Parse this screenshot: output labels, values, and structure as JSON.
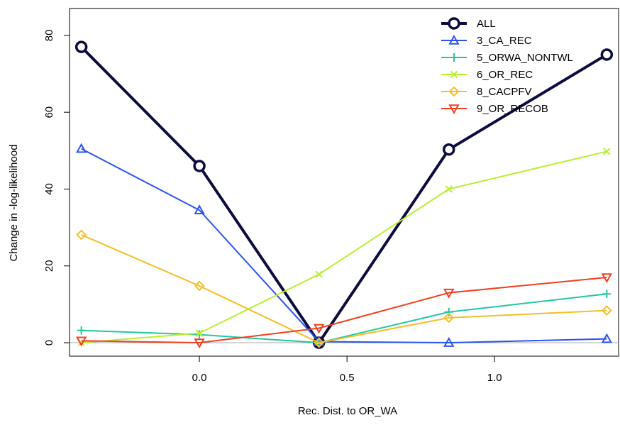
{
  "chart_data": {
    "type": "line",
    "xlabel": "Rec. Dist. to OR_WA",
    "ylabel": "Change in -log-likelihood",
    "xlim": [
      -0.44,
      1.42
    ],
    "ylim": [
      -3.5,
      87
    ],
    "xticks": [
      0.0,
      0.5,
      1.0
    ],
    "xtick_labels": [
      "0.0",
      "0.5",
      "1.0"
    ],
    "yticks": [
      0,
      20,
      40,
      60,
      80
    ],
    "ytick_labels": [
      "0",
      "20",
      "40",
      "60",
      "80"
    ],
    "reference_line_y": 0,
    "grid": false,
    "legend_position": "top-right",
    "x": [
      -0.4,
      0.0,
      0.405,
      0.845,
      1.38
    ],
    "series": [
      {
        "name": "ALL",
        "color": "#0c0c3e",
        "marker": "circle",
        "values": [
          77,
          46,
          0,
          50.3,
          75
        ]
      },
      {
        "name": "3_CA_REC",
        "color": "#2a54f0",
        "marker": "triangle-up",
        "values": [
          50.5,
          34.5,
          0.3,
          0,
          1
        ]
      },
      {
        "name": "5_ORWA_NONTWL",
        "color": "#20c8a0",
        "marker": "plus",
        "values": [
          3.2,
          2.1,
          0,
          8,
          12.7
        ]
      },
      {
        "name": "6_OR_REC",
        "color": "#b8f030",
        "marker": "cross",
        "values": [
          0,
          2.5,
          17.8,
          40,
          49.8
        ]
      },
      {
        "name": "8_CACPFV",
        "color": "#f5be28",
        "marker": "diamond",
        "values": [
          28.1,
          14.8,
          0,
          6.5,
          8.4
        ]
      },
      {
        "name": "9_OR_RECOB",
        "color": "#f04020",
        "marker": "triangle-down",
        "values": [
          0.5,
          0,
          3.8,
          13,
          17
        ]
      }
    ]
  }
}
